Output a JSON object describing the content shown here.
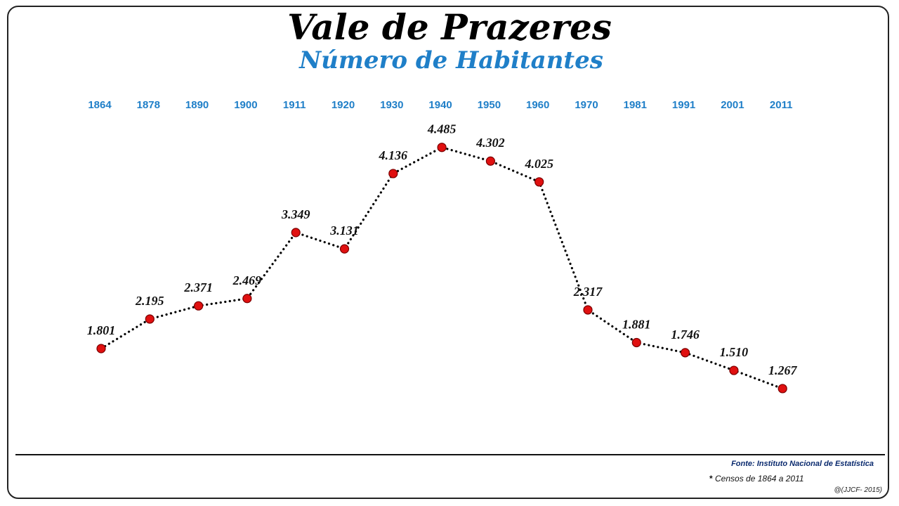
{
  "colors": {
    "title": "#000000",
    "accent": "#1f7fc8",
    "marker": "#e01010",
    "marker_edge": "#7a0000",
    "line": "#000000"
  },
  "chart_data": {
    "type": "line",
    "title": "Vale de Prazeres",
    "subtitle": "Número de Habitantes",
    "x": [
      "1864",
      "1878",
      "1890",
      "1900",
      "1911",
      "1920",
      "1930",
      "1940",
      "1950",
      "1960",
      "1970",
      "1981",
      "1991",
      "2001",
      "2011"
    ],
    "series": [
      {
        "values": [
          1801,
          2195,
          2371,
          2469,
          3349,
          3131,
          4136,
          4485,
          4302,
          4025,
          2317,
          1881,
          1746,
          1510,
          1267
        ],
        "labels": [
          "1.801",
          "2.195",
          "2.371",
          "2.469",
          "3.349",
          "3.131",
          "4.136",
          "4.485",
          "4.302",
          "4.025",
          "2.317",
          "1.881",
          "1.746",
          "1.510",
          "1.267"
        ]
      }
    ],
    "line_style": "dotted",
    "marker": "circle",
    "grid": false,
    "axis_labels_position": "top"
  },
  "footer": {
    "source": "Fonte: Instituto Nacional de Estatística",
    "note_star": "*",
    "note": "Censos de 1864 a 2011",
    "credit": "@(JJCF- 2015)"
  }
}
